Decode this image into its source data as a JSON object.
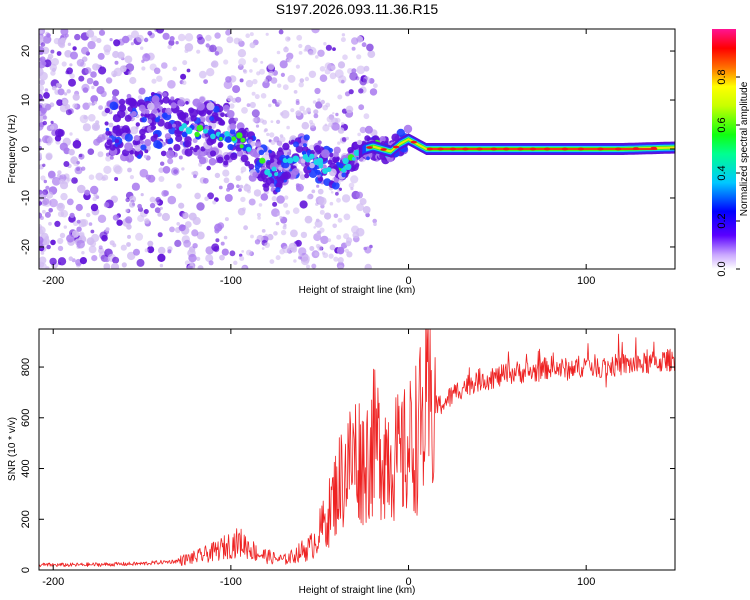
{
  "figure_title": "S197.2026.093.11.36.R15",
  "colors": {
    "snr_line": "#ee2222",
    "spec_light": "#d2bdf2",
    "spec_mid": "#a878ee",
    "spec_dark": "#5f0fd8",
    "core_blue": "#1b3dff",
    "core_cyan": "#1dd6e6",
    "core_green": "#37f21f",
    "core_yellow": "#e8e60c",
    "core_red": "#f01818"
  },
  "chart_data": [
    {
      "type": "heatmap",
      "name": "spectrogram",
      "title": "S197.2026.093.11.36.R15",
      "xlabel": "Height of straight line (km)",
      "ylabel": "Frequency (Hz)",
      "xlim": [
        -208,
        150
      ],
      "ylim": [
        -24.5,
        24.5
      ],
      "x_ticks": [
        -200,
        -100,
        0,
        100
      ],
      "x_tick_labels": [
        "-200",
        "-100",
        "0",
        "100"
      ],
      "y_ticks": [
        -20,
        -10,
        0,
        10,
        20
      ],
      "y_tick_labels": [
        "-20",
        "-10",
        "0",
        "10",
        "20"
      ],
      "signal_track": {
        "description": "frequency of dominant spectral ridge vs height",
        "x": [
          -208,
          -180,
          -160,
          -140,
          -120,
          -105,
          -95,
          -85,
          -80,
          -75,
          -70,
          -65,
          -60,
          -55,
          -50,
          -45,
          -40,
          -35,
          -30,
          -25,
          -20,
          -15,
          -10,
          -5,
          0,
          5,
          10,
          20,
          40,
          60,
          80,
          100,
          120,
          150
        ],
        "y": [
          3,
          4,
          4,
          5,
          3.5,
          3,
          2,
          -2,
          -4,
          -5,
          -3,
          -1.5,
          -1,
          -2,
          -3,
          -4,
          -4,
          -3,
          -1.5,
          0,
          0.5,
          0,
          -0.5,
          1,
          2,
          1,
          0,
          0,
          0,
          0,
          0,
          0,
          0,
          0.3
        ]
      },
      "colorbar": {
        "label": "Normalized spectral amplitude",
        "range": [
          0.0,
          1.0
        ],
        "ticks": [
          0.0,
          0.2,
          0.4,
          0.6,
          0.8
        ],
        "tick_labels": [
          "0.0",
          "0.2",
          "0.4",
          "0.6",
          "0.8"
        ],
        "colormap": "rainbow"
      }
    },
    {
      "type": "line",
      "name": "snr",
      "xlabel": "Height of straight line (km)",
      "ylabel": "SNR (10 * v/v)",
      "xlim": [
        -208,
        150
      ],
      "ylim": [
        0,
        950
      ],
      "x_ticks": [
        -200,
        -100,
        0,
        100
      ],
      "x_tick_labels": [
        "-200",
        "-100",
        "0",
        "100"
      ],
      "y_ticks": [
        0,
        200,
        400,
        600,
        800
      ],
      "y_tick_labels": [
        "0",
        "200",
        "400",
        "600",
        "800"
      ],
      "series": [
        {
          "name": "SNR",
          "x": [
            -208,
            -190,
            -170,
            -150,
            -130,
            -120,
            -110,
            -100,
            -95,
            -90,
            -85,
            -80,
            -75,
            -70,
            -65,
            -60,
            -55,
            -50,
            -45,
            -40,
            -35,
            -30,
            -25,
            -20,
            -15,
            -10,
            -5,
            0,
            5,
            10,
            15,
            20,
            30,
            40,
            50,
            60,
            70,
            80,
            90,
            100,
            110,
            120,
            130,
            140,
            150
          ],
          "y": [
            20,
            20,
            22,
            25,
            35,
            50,
            70,
            100,
            110,
            90,
            65,
            55,
            45,
            40,
            55,
            75,
            90,
            150,
            220,
            330,
            400,
            460,
            420,
            500,
            480,
            460,
            430,
            470,
            540,
            600,
            640,
            660,
            720,
            750,
            760,
            780,
            780,
            800,
            790,
            810,
            800,
            810,
            810,
            820,
            830
          ]
        }
      ]
    }
  ]
}
